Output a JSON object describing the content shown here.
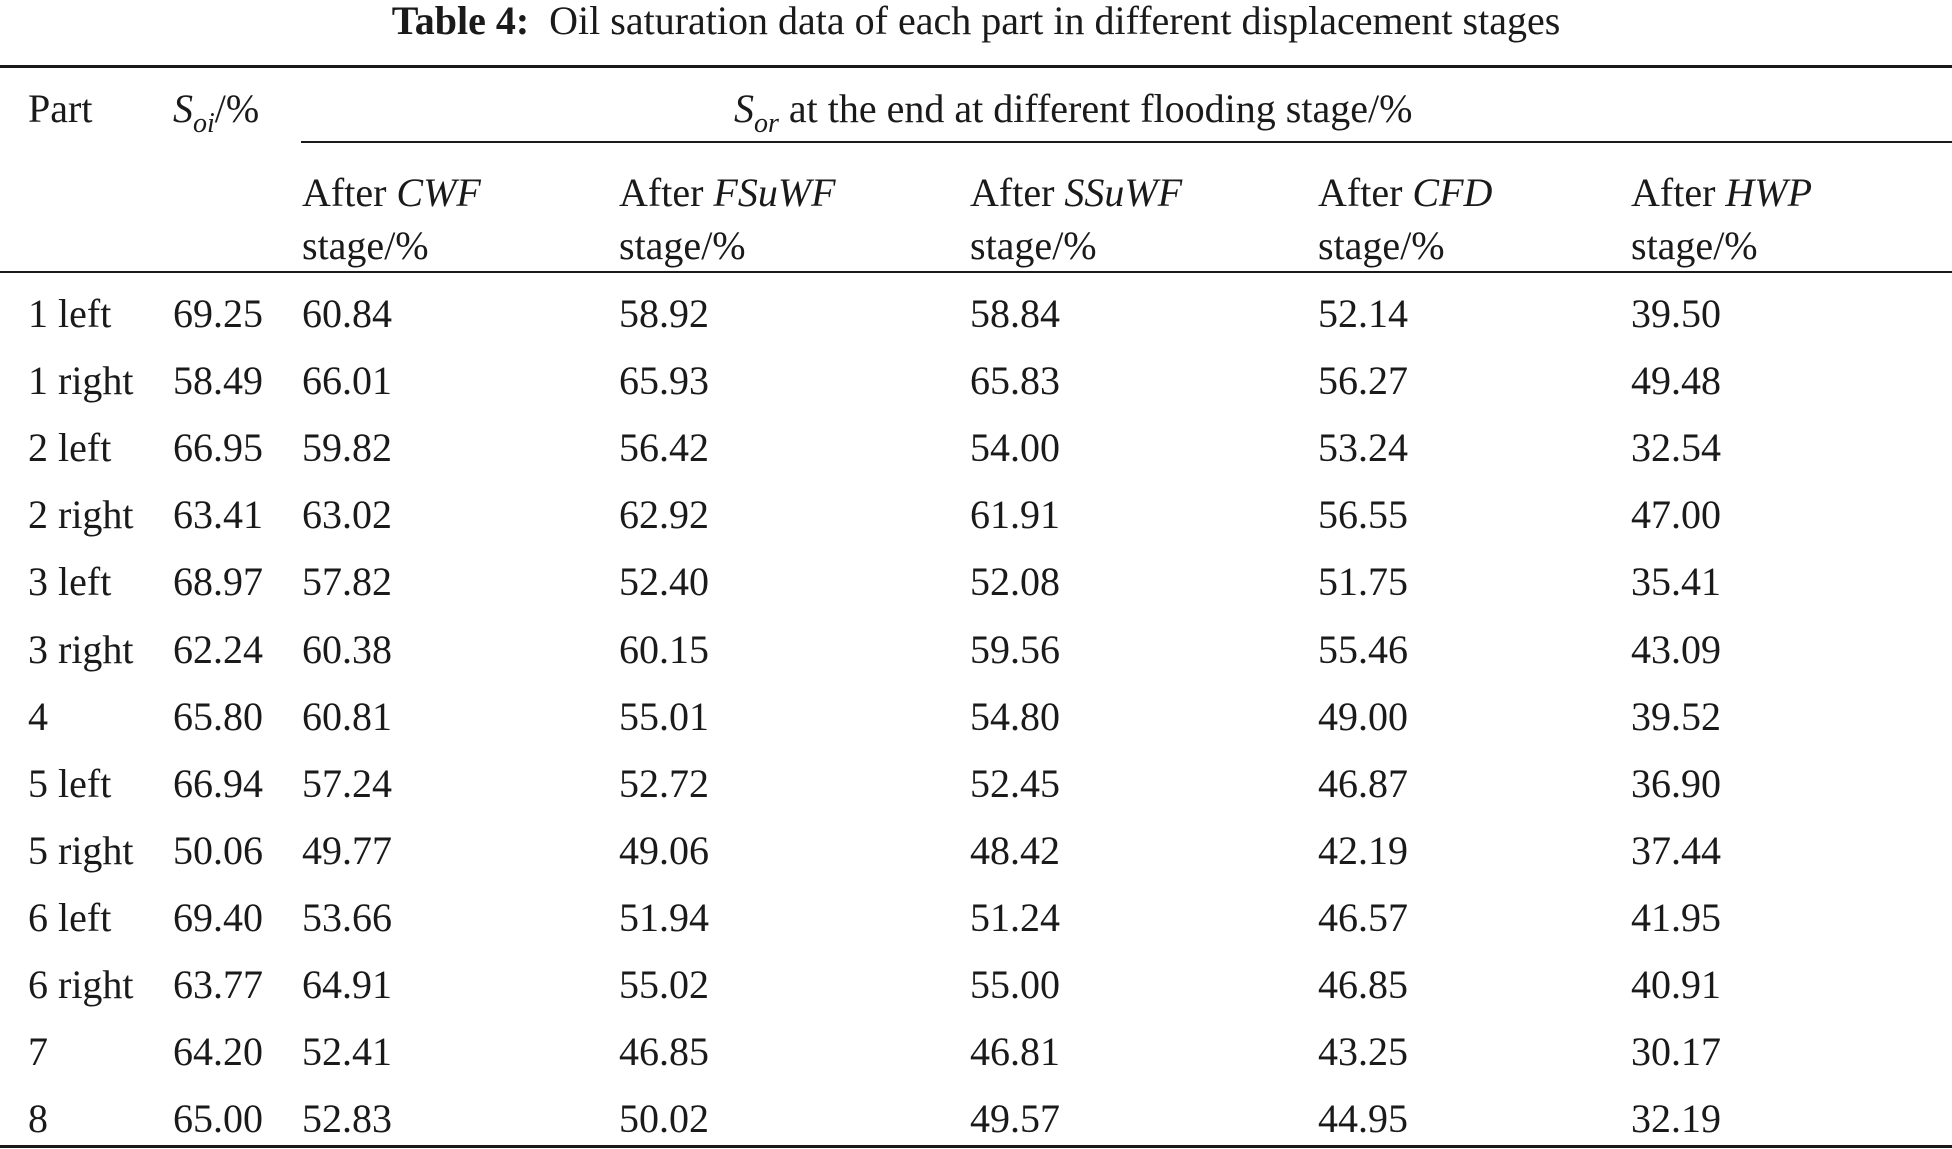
{
  "caption": {
    "label": "Table 4:",
    "text": "Oil saturation data of each part in different displacement stages"
  },
  "header": {
    "part": "Part",
    "soi_symbol": "S",
    "soi_sub": "oi",
    "soi_unit": "/%",
    "sor_symbol": "S",
    "sor_sub": "or",
    "sor_text": "at the end at different flooding stage/%",
    "stages": [
      {
        "prefix": "After",
        "name": "CWF",
        "suffix": "stage/%"
      },
      {
        "prefix": "After",
        "name": "FSuWF",
        "suffix": "stage/%"
      },
      {
        "prefix": "After",
        "name": "SSuWF",
        "suffix": "stage/%"
      },
      {
        "prefix": "After",
        "name": "CFD",
        "suffix": "stage/%"
      },
      {
        "prefix": "After",
        "name": "HWP",
        "suffix": "stage/%"
      }
    ]
  },
  "rows": [
    {
      "part": "1 left",
      "soi": "69.25",
      "vals": [
        "60.84",
        "58.92",
        "58.84",
        "52.14",
        "39.50"
      ]
    },
    {
      "part": "1 right",
      "soi": "58.49",
      "vals": [
        "66.01",
        "65.93",
        "65.83",
        "56.27",
        "49.48"
      ]
    },
    {
      "part": "2 left",
      "soi": "66.95",
      "vals": [
        "59.82",
        "56.42",
        "54.00",
        "53.24",
        "32.54"
      ]
    },
    {
      "part": "2 right",
      "soi": "63.41",
      "vals": [
        "63.02",
        "62.92",
        "61.91",
        "56.55",
        "47.00"
      ]
    },
    {
      "part": "3 left",
      "soi": "68.97",
      "vals": [
        "57.82",
        "52.40",
        "52.08",
        "51.75",
        "35.41"
      ]
    },
    {
      "part": "3 right",
      "soi": "62.24",
      "vals": [
        "60.38",
        "60.15",
        "59.56",
        "55.46",
        "43.09"
      ]
    },
    {
      "part": "4",
      "soi": "65.80",
      "vals": [
        "60.81",
        "55.01",
        "54.80",
        "49.00",
        "39.52"
      ]
    },
    {
      "part": "5 left",
      "soi": "66.94",
      "vals": [
        "57.24",
        "52.72",
        "52.45",
        "46.87",
        "36.90"
      ]
    },
    {
      "part": "5 right",
      "soi": "50.06",
      "vals": [
        "49.77",
        "49.06",
        "48.42",
        "42.19",
        "37.44"
      ]
    },
    {
      "part": "6 left",
      "soi": "69.40",
      "vals": [
        "53.66",
        "51.94",
        "51.24",
        "46.57",
        "41.95"
      ]
    },
    {
      "part": "6 right",
      "soi": "63.77",
      "vals": [
        "64.91",
        "55.02",
        "55.00",
        "46.85",
        "40.91"
      ]
    },
    {
      "part": "7",
      "soi": "64.20",
      "vals": [
        "52.41",
        "46.85",
        "46.81",
        "43.25",
        "30.17"
      ]
    },
    {
      "part": "8",
      "soi": "65.00",
      "vals": [
        "52.83",
        "50.02",
        "49.57",
        "44.95",
        "32.19"
      ]
    }
  ]
}
